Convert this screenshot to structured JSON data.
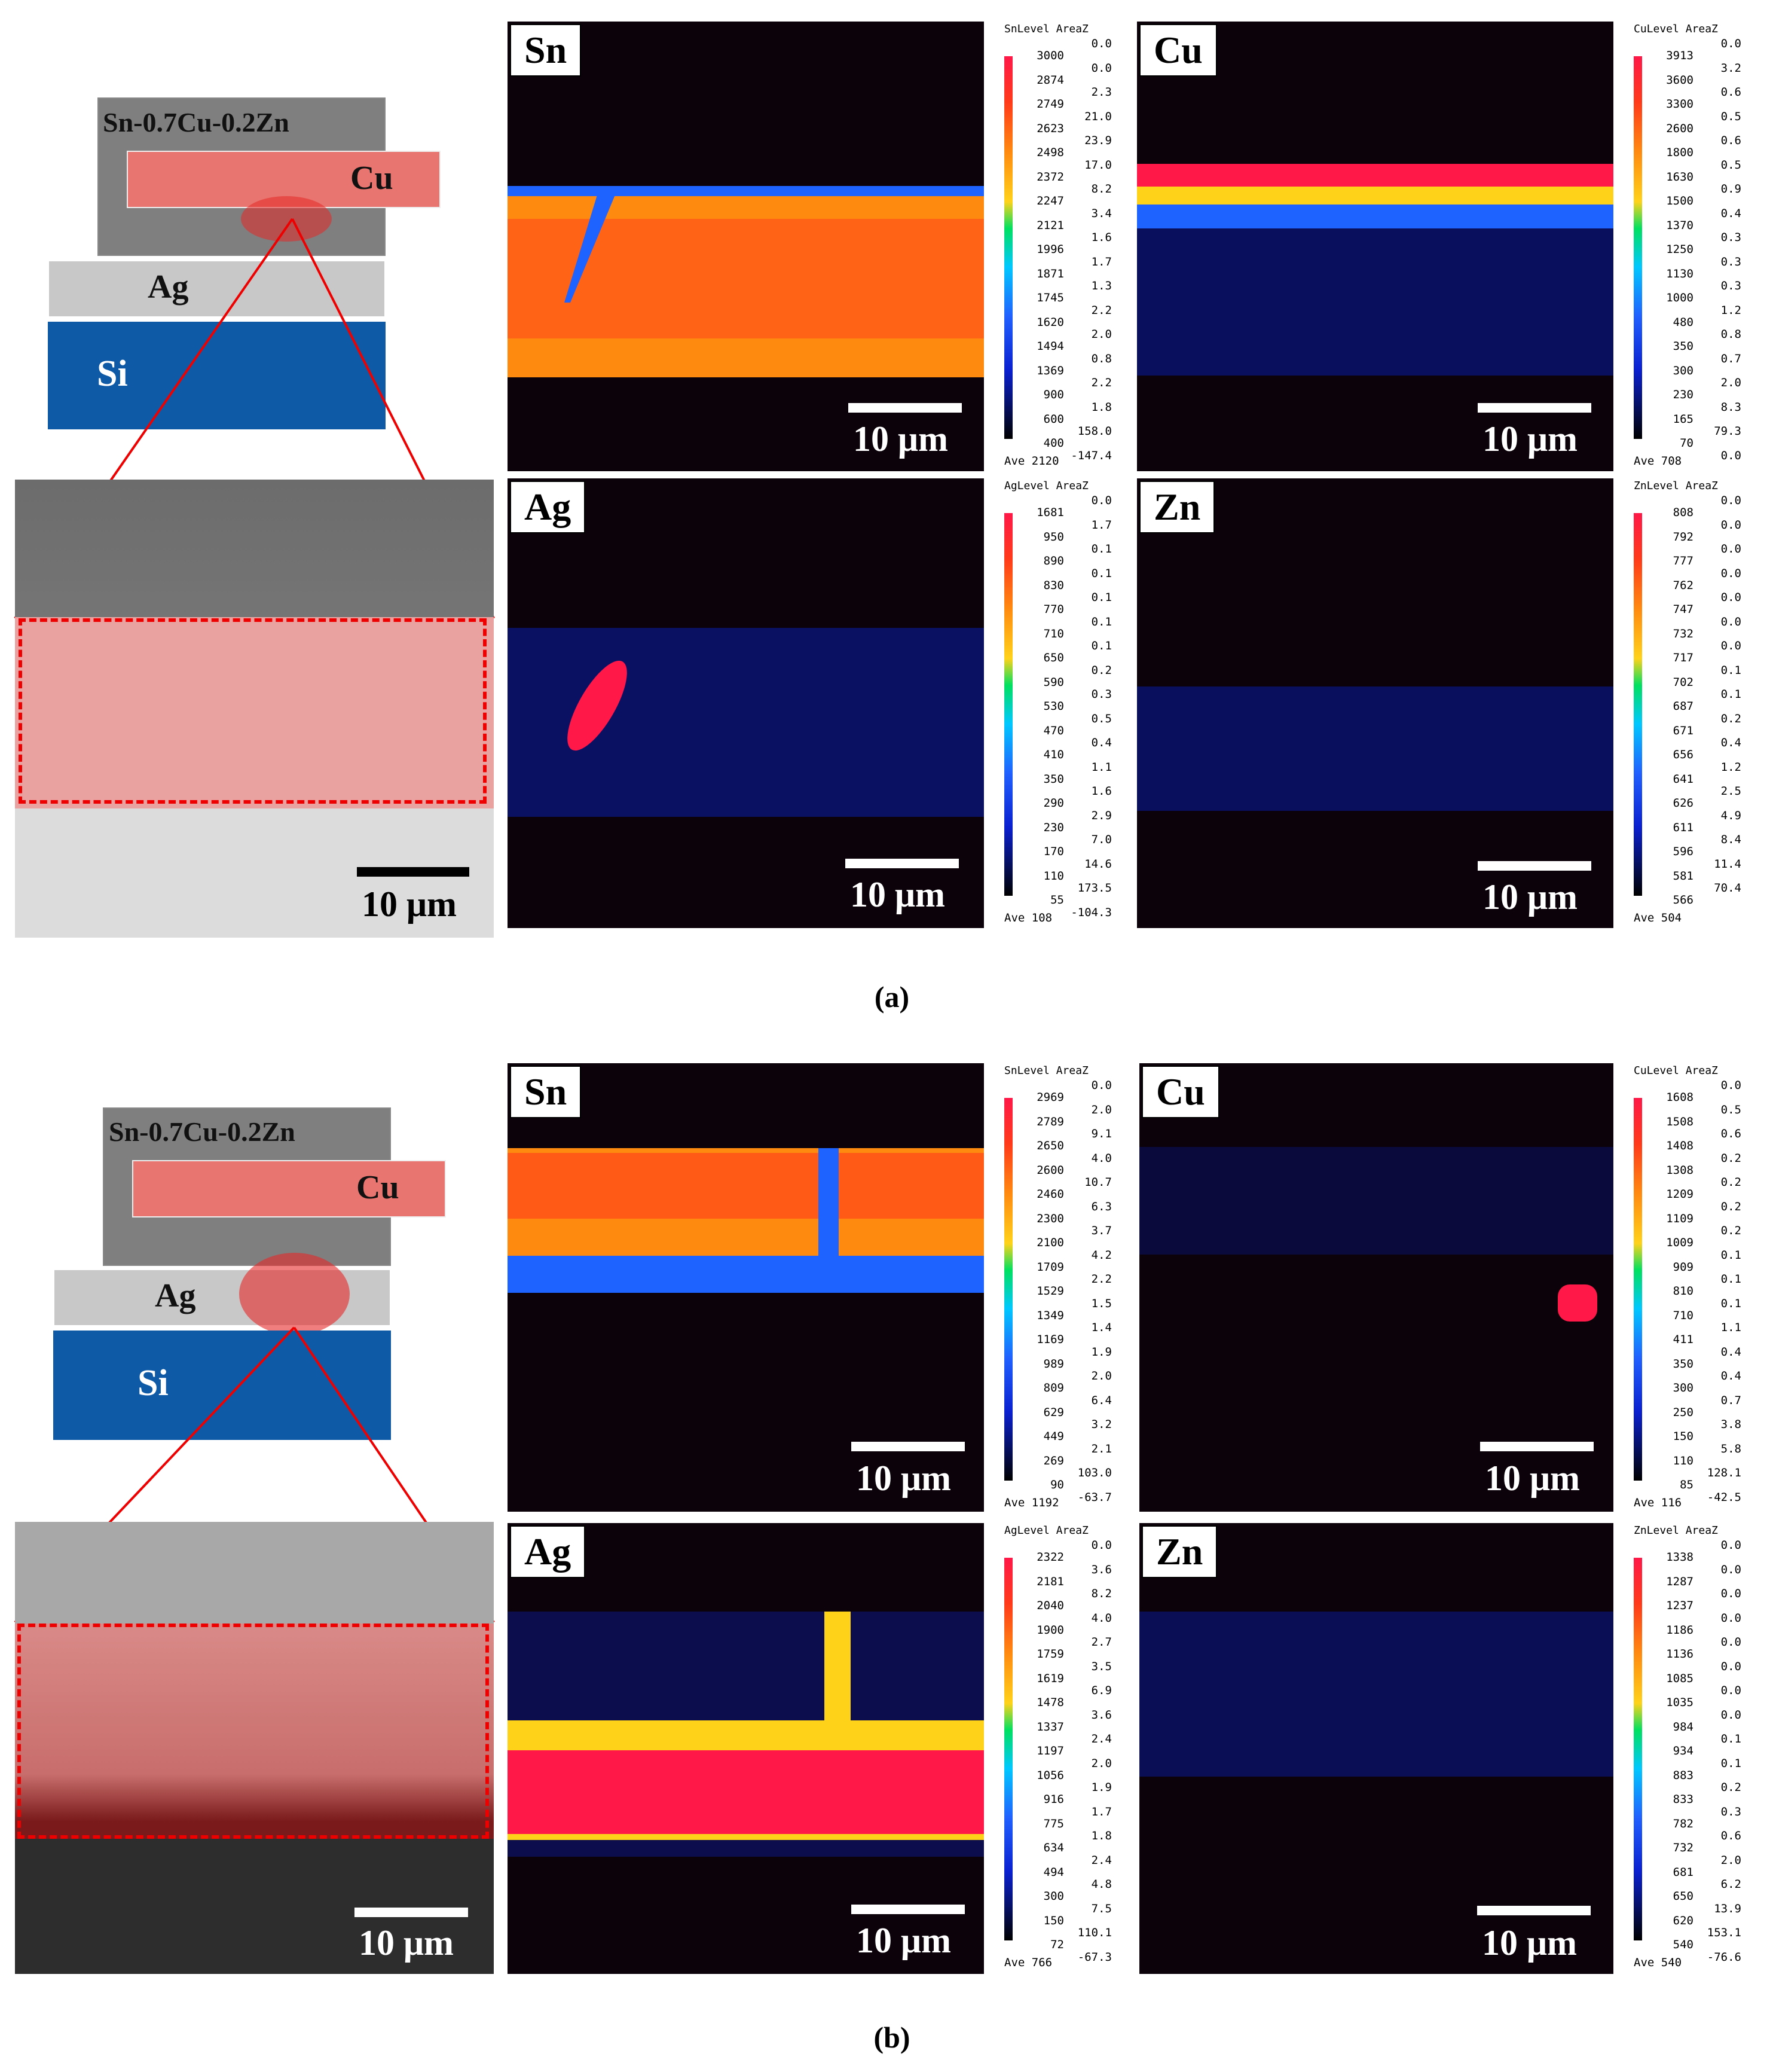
{
  "panels": [
    {
      "label": "(a)",
      "schematic": {
        "solder": "Sn-0.7Cu-0.2Zn",
        "cu": "Cu",
        "ag": "Ag",
        "si": "Si"
      },
      "sem_scale": "10 μm",
      "maps": [
        {
          "element": "Sn",
          "scale": "10 μm",
          "cbar_header": "SnLevel AreaZ",
          "levels": [
            "3000",
            "2874",
            "2749",
            "2623",
            "2498",
            "2372",
            "2247",
            "2121",
            "1996",
            "1871",
            "1745",
            "1620",
            "1494",
            "1369",
            "900",
            "600",
            "400"
          ],
          "area": [
            "0.0",
            "0.0",
            "2.3",
            "21.0",
            "23.9",
            "17.0",
            "8.2",
            "3.4",
            "1.6",
            "1.7",
            "1.3",
            "2.2",
            "2.0",
            "0.8",
            "2.2",
            "1.8",
            "158.0",
            "-147.4"
          ],
          "ave": "Ave 2120"
        },
        {
          "element": "Cu",
          "scale": "10 μm",
          "cbar_header": "CuLevel AreaZ",
          "levels": [
            "3913",
            "3600",
            "3300",
            "2600",
            "1800",
            "1630",
            "1500",
            "1370",
            "1250",
            "1130",
            "1000",
            "480",
            "350",
            "300",
            "230",
            "165",
            "70"
          ],
          "area": [
            "0.0",
            "3.2",
            "0.6",
            "0.5",
            "0.6",
            "0.5",
            "0.9",
            "0.4",
            "0.3",
            "0.3",
            "0.3",
            "1.2",
            "0.8",
            "0.7",
            "2.0",
            "8.3",
            "79.3",
            "0.0"
          ],
          "ave": "Ave 708"
        },
        {
          "element": "Ag",
          "scale": "10 μm",
          "cbar_header": "AgLevel AreaZ",
          "levels": [
            "1681",
            "950",
            "890",
            "830",
            "770",
            "710",
            "650",
            "590",
            "530",
            "470",
            "410",
            "350",
            "290",
            "230",
            "170",
            "110",
            "55"
          ],
          "area": [
            "0.0",
            "1.7",
            "0.1",
            "0.1",
            "0.1",
            "0.1",
            "0.1",
            "0.2",
            "0.3",
            "0.5",
            "0.4",
            "1.1",
            "1.6",
            "2.9",
            "7.0",
            "14.6",
            "173.5",
            "-104.3"
          ],
          "ave": "Ave 108"
        },
        {
          "element": "Zn",
          "scale": "10 μm",
          "cbar_header": "ZnLevel AreaZ",
          "levels": [
            "808",
            "792",
            "777",
            "762",
            "747",
            "732",
            "717",
            "702",
            "687",
            "671",
            "656",
            "641",
            "626",
            "611",
            "596",
            "581",
            "566"
          ],
          "area": [
            "0.0",
            "0.0",
            "0.0",
            "0.0",
            "0.0",
            "0.0",
            "0.0",
            "0.1",
            "0.1",
            "0.2",
            "0.4",
            "1.2",
            "2.5",
            "4.9",
            "8.4",
            "11.4",
            "70.4"
          ],
          "ave": "Ave 504"
        }
      ]
    },
    {
      "label": "(b)",
      "schematic": {
        "solder": "Sn-0.7Cu-0.2Zn",
        "cu": "Cu",
        "ag": "Ag",
        "si": "Si"
      },
      "sem_scale": "10 μm",
      "maps": [
        {
          "element": "Sn",
          "scale": "10 μm",
          "cbar_header": "SnLevel AreaZ",
          "levels": [
            "2969",
            "2789",
            "2650",
            "2600",
            "2460",
            "2300",
            "2100",
            "1709",
            "1529",
            "1349",
            "1169",
            "989",
            "809",
            "629",
            "449",
            "269",
            "90"
          ],
          "area": [
            "0.0",
            "2.0",
            "9.1",
            "4.0",
            "10.7",
            "6.3",
            "3.7",
            "4.2",
            "2.2",
            "1.5",
            "1.4",
            "1.9",
            "2.0",
            "6.4",
            "3.2",
            "2.1",
            "103.0",
            "-63.7"
          ],
          "ave": "Ave 1192"
        },
        {
          "element": "Cu",
          "scale": "10 μm",
          "cbar_header": "CuLevel AreaZ",
          "levels": [
            "1608",
            "1508",
            "1408",
            "1308",
            "1209",
            "1109",
            "1009",
            "909",
            "810",
            "710",
            "411",
            "350",
            "300",
            "250",
            "150",
            "110",
            "85"
          ],
          "area": [
            "0.0",
            "0.5",
            "0.6",
            "0.2",
            "0.2",
            "0.2",
            "0.2",
            "0.1",
            "0.1",
            "0.1",
            "1.1",
            "0.4",
            "0.4",
            "0.7",
            "3.8",
            "5.8",
            "128.1",
            "-42.5"
          ],
          "ave": "Ave 116"
        },
        {
          "element": "Ag",
          "scale": "10 μm",
          "cbar_header": "AgLevel AreaZ",
          "levels": [
            "2322",
            "2181",
            "2040",
            "1900",
            "1759",
            "1619",
            "1478",
            "1337",
            "1197",
            "1056",
            "916",
            "775",
            "634",
            "494",
            "300",
            "150",
            "72"
          ],
          "area": [
            "0.0",
            "3.6",
            "8.2",
            "4.0",
            "2.7",
            "3.5",
            "6.9",
            "3.6",
            "2.4",
            "2.0",
            "1.9",
            "1.7",
            "1.8",
            "2.4",
            "4.8",
            "7.5",
            "110.1",
            "-67.3"
          ],
          "ave": "Ave 766"
        },
        {
          "element": "Zn",
          "scale": "10 μm",
          "cbar_header": "ZnLevel AreaZ",
          "levels": [
            "1338",
            "1287",
            "1237",
            "1186",
            "1136",
            "1085",
            "1035",
            "984",
            "934",
            "883",
            "833",
            "782",
            "732",
            "681",
            "650",
            "620",
            "540"
          ],
          "area": [
            "0.0",
            "0.0",
            "0.0",
            "0.0",
            "0.0",
            "0.0",
            "0.0",
            "0.0",
            "0.1",
            "0.1",
            "0.2",
            "0.3",
            "0.6",
            "2.0",
            "6.2",
            "13.9",
            "153.1",
            "-76.6"
          ],
          "ave": "Ave 540"
        }
      ]
    }
  ],
  "colors": {
    "cu_layer": "#e8756f",
    "solder": "#808080",
    "ag_layer": "#c8c8c8",
    "si": "#0e5aa6",
    "highlight": "#ff0000",
    "map_bg": "#0b0309"
  }
}
